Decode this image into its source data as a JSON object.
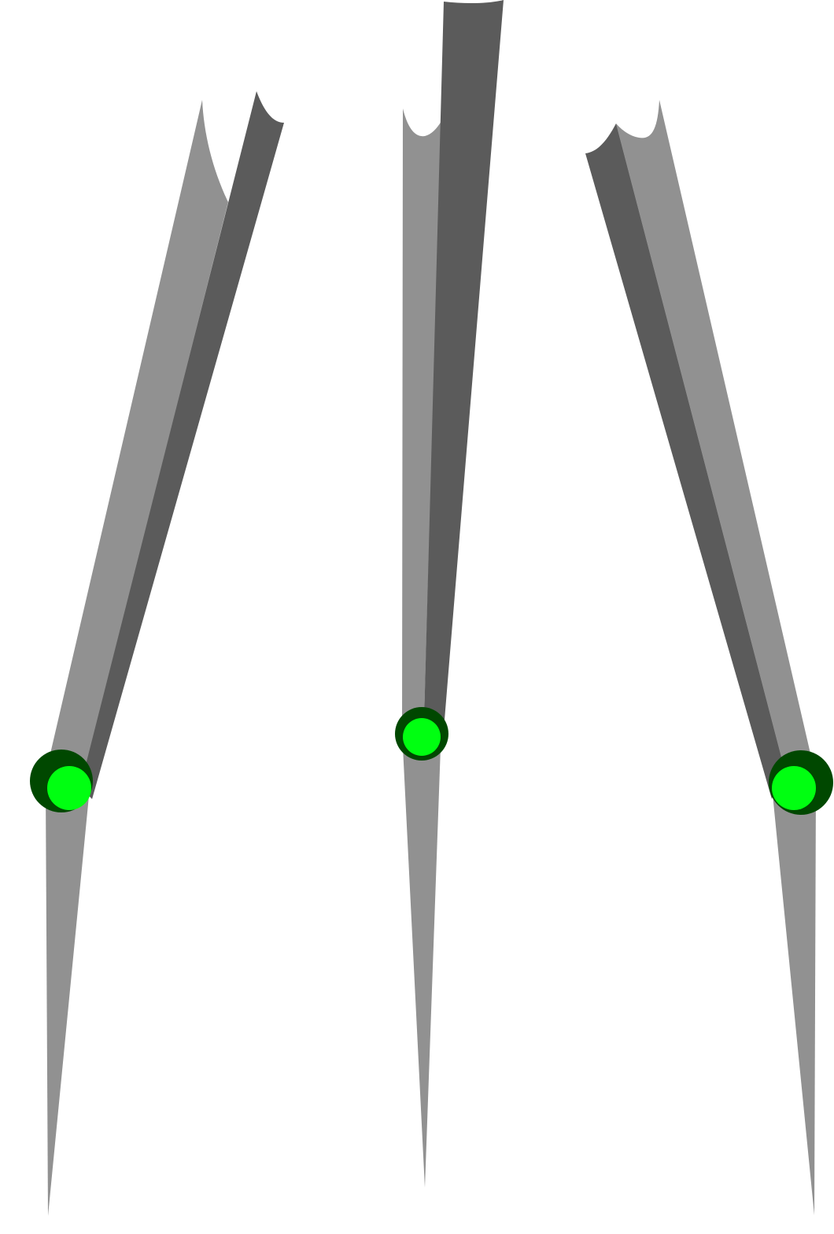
{
  "colors": {
    "background": "#ffffff",
    "segment_light": "#919191",
    "segment_dark": "#5b5b5b",
    "joint_outer": "#004800",
    "joint_inner": "#00ff11"
  },
  "legs": [
    {
      "name": "left",
      "parts": [
        "upper-light-segment",
        "upper-dark-segment",
        "lower-segment"
      ],
      "joint_icon": "knee-joint-icon"
    },
    {
      "name": "center",
      "parts": [
        "upper-light-segment",
        "upper-dark-segment",
        "lower-segment"
      ],
      "joint_icon": "knee-joint-icon"
    },
    {
      "name": "right",
      "parts": [
        "upper-light-segment",
        "upper-dark-segment",
        "lower-segment"
      ],
      "joint_icon": "knee-joint-icon"
    }
  ]
}
